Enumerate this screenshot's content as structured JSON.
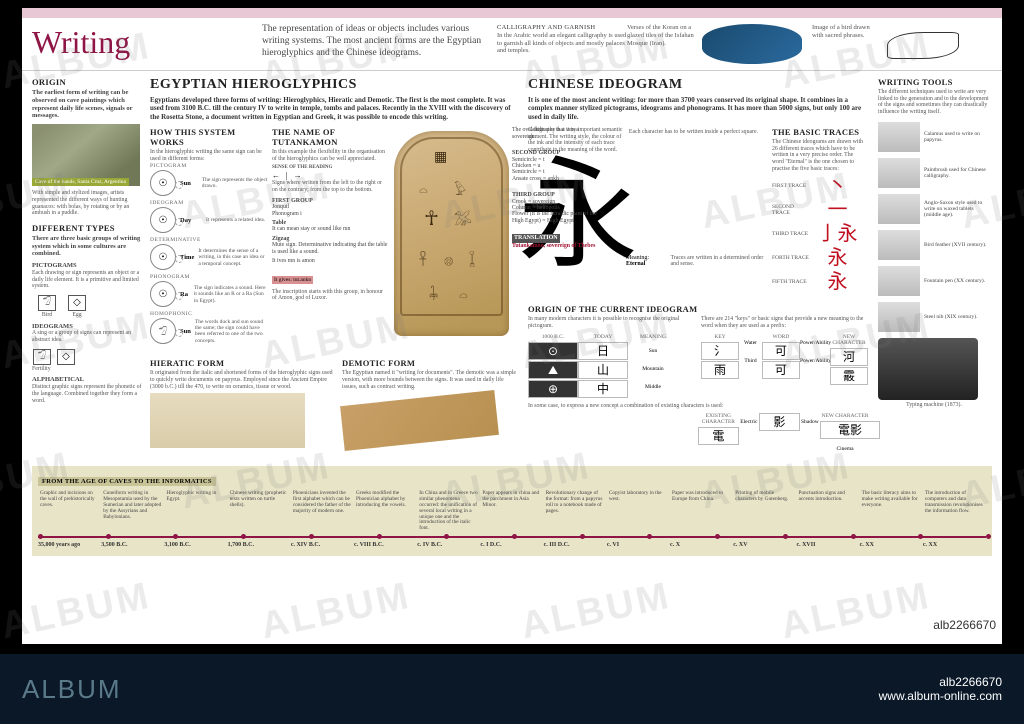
{
  "header": {
    "title": "Writing",
    "intro": "The representation of ideas or objects includes various writing systems. The most ancient forms are the Egyptian hieroglyphics and the Chinese ideograms.",
    "calligraphy_caption": "CALLIGRAPHY AND GARNISH",
    "calligraphy_text": "In the Arabic world an elegant calligraphy is used to garnish all kinds of objects and mostly palaces and temples.",
    "koran_caption": "Verses of the Koran on a glazed tiles of the Isfahan Mosque (Iran).",
    "bird_caption": "Image of a bird drawn with sacred phrases."
  },
  "sidebar": {
    "origin_title": "ORIGIN",
    "origin_text": "The earliest form of writing can be observed on cave paintings which represent daily life scenes, signals or messages.",
    "cave_label": "Cave of the hands, Santa Cruz, Argentina",
    "cave_after": "With simple and stylized images, artists represented the different ways of hunting guanacos: with bolas, by rotating or by an ambush in a puddle.",
    "types_title": "DIFFERENT TYPES",
    "types_text": "There are three basic groups of writing system which in some cultures are combined.",
    "picto_title": "PICTOGRAMS",
    "picto_text": "Each drawing or sign represents an object or a daily life element. It is a primitive and limited system.",
    "picto_ex1": "Bird",
    "picto_ex2": "Egg",
    "ideo_title": "IDEOGRAMS",
    "ideo_text": "A sing or a group of signs can represent an abstract idea.",
    "ideo_ex": "Fertility",
    "alpha_title": "ALPHABETICAL",
    "alpha_text": "Distinct graphic signs represent the phonetic of the language. Combined together they form a word."
  },
  "egypt": {
    "title": "EGYPTIAN HIEROGLYPHICS",
    "intro": "Egyptians developed three forms of writing: Hieroglyphics, Hieratic and Demotic. The first is the most complete. It was used from 3100 B.C. till the century IV to write in temple, tombs and palaces. Recently in the XVIII with the discovery of the Rosetta Stone, a document written in Egyptian and Greek, it was possible to encode this writing.",
    "how_title": "HOW THIS SYSTEM WORKS",
    "how_text": "In the hieroglyphic writing the same sign can be used in different forms:",
    "cats": [
      {
        "cat": "PICTOGRAM",
        "glyph": "☉",
        "label": "Sun",
        "text": "The sign represents the object drawn."
      },
      {
        "cat": "IDEOGRAM",
        "glyph": "☉",
        "label": "Day",
        "text": "It represents a related idea."
      },
      {
        "cat": "DETERMINATIVE",
        "glyph": "☉",
        "label": "Time",
        "text": "It determines the sense of a writing, in this case an idea or a temporal concept."
      },
      {
        "cat": "PHONOGRAM",
        "glyph": "☉",
        "label": "Ra",
        "text": "The sign indicates a sound. Here it sounds like an R or a Ra (Sun in Egypt)."
      },
      {
        "cat": "HOMOPHONIC",
        "glyph": "𓅿",
        "label": "Sun",
        "text": "The words duck and sun sound the same; the sign could have been referred to one of the two concepts."
      }
    ],
    "name_title": "THE NAME OF TUTANKAMON",
    "name_text": "In this example the flexibility in the organisation of the hieroglyphics can be well appreciated.",
    "sense_label": "SENSE OF THE READING",
    "sense_text": "Signs where written from the left to the right or on the contrary; from the top to the bottom.",
    "cart_items": [
      {
        "h": "FIRST GROUP",
        "a": "Jonquil",
        "b": "Phonogram i"
      },
      {
        "h": "Table",
        "a": "It can mean stay or sound like mn"
      },
      {
        "h": "Zigzag",
        "a": "Mute sign. Determinative indicating that the table is used like a sound."
      },
      {
        "h": "",
        "a": "It ives mn is amon"
      }
    ],
    "give_box": "It gives: tut.ankn",
    "inscription": "The inscription starts with this group, in honour of Amon, god of Luxor.",
    "right_items": [
      {
        "h": "",
        "a": "The oval indicates that it is a sovereign."
      },
      {
        "h": "SECOND GROUP",
        "a": "Semicircle = t\nChicken = u\nSemicircle = t\nAnsate cross = ankh"
      },
      {
        "h": "THIRD GROUP",
        "a": "Crook = sovereign\nColumn = heliopolis\nFlower (it is the heraldic plant of the High Egypt) = High Egypt"
      },
      {
        "h": "TRANSLATION",
        "a": "Tutankamón, sovereign of Thebes"
      }
    ],
    "hieratic_title": "HIERATIC FORM",
    "hieratic_text": "It originated from the italic and shortened forms of the hieroglyphic signs used to quickly write documents on papyrus. Employed since the Ancient Empire (3000 b.C.) till the 470, to write on ceramics, tissue or wood.",
    "demotic_title": "DEMOTIC FORM",
    "demotic_text": "The Egyptian named it \"writing for documents\". The demotic was a simple version, with more bounds between the signs. It was used in daily life issues, such as contract writing."
  },
  "china": {
    "title": "CHINESE IDEOGRAM",
    "intro": "It is one of the most ancient writing: for more than 3700 years conserved its original shape. It combines in a complex manner stylized pictograms, ideograms and phonograms. It has more than 5000 signs, but only 100 are used in daily life.",
    "callig_text": "Calligraphy is a very important semantic element. The writing style, the colour of the ink and the intensity of each trace contribute to the meaning of the word.",
    "char_right": "Each character has to be written inside a perfect square.",
    "main_char": "永",
    "meaning_label": "Meaning:",
    "meaning_value": "Eternal",
    "traces_note": "Traces are written in a determined order and sense.",
    "traces_title": "THE BASIC TRACES",
    "traces_text": "The Chinese ideograms are drawn with 26 different traces which have to be written in a very precise order. The word \"Eternal\" is the one chosen to practise the five basic traces:",
    "traces": [
      {
        "label": "FIRST TRACE",
        "ch": "丶"
      },
      {
        "label": "SECOND TRACE",
        "ch": "一"
      },
      {
        "label": "THIRD TRACE",
        "ch": "亅永"
      },
      {
        "label": "FORTH TRACE",
        "ch": "永"
      },
      {
        "label": "FIFTH TRACE",
        "ch": "永"
      }
    ],
    "origin_title": "ORIGIN OF THE CURRENT IDEOGRAM",
    "origin_text": "In many modern characters it is possible to recognise the original pictogram.",
    "grid1_headers": [
      "1000 B.C.",
      "TODAY",
      "MEANING"
    ],
    "grid1": [
      {
        "old": "⊙",
        "new": "日",
        "mean": "Sun"
      },
      {
        "old": "⛰",
        "new": "山",
        "mean": "Mountain"
      },
      {
        "old": "⊕",
        "new": "中",
        "mean": "Middle"
      }
    ],
    "keys_text": "There are 214 \"keys\" or basic signs that provide a new meaning to the word when they are used as a prefix:",
    "grid2_headers": [
      "KEY",
      "WORD",
      "NEW CHARACTER"
    ],
    "grid2": [
      {
        "k": "氵",
        "kl": "Water",
        "w": "可",
        "wl": "Power/Ability",
        "n": "河",
        "nl": "River"
      },
      {
        "k": "雨",
        "kl": "Third",
        "w": "可",
        "wl": "Power/Ability",
        "n": "霰",
        "nl": "To critic"
      }
    ],
    "combo_text": "In some case, to express a new concept a combination of existing characters is used:",
    "grid3_headers": [
      "EXISTING CHARACTER",
      "",
      "NEW CHARACTER"
    ],
    "grid3": [
      {
        "a": "電",
        "al": "Electric",
        "b": "影",
        "bl": "Shadow",
        "n": "電影",
        "nl": "Cinema"
      }
    ]
  },
  "tools": {
    "title": "WRITING TOOLS",
    "intro": "The different techniques used to write are very linked to the generation and to the development of the signs and sometimes they can drastically influence the writing itself.",
    "items": [
      "Calamus used to write on papyrus.",
      "Paintbrush used for Chinese calligraphy.",
      "Anglo-Saxon style used to write on waxed tablets (middle age).",
      "Bird feather (XVII century).",
      "Fountain pen (XX century).",
      "Steel nib (XIX century)."
    ],
    "typewriter": "Typing machine (1873)."
  },
  "timeline": {
    "title": "FROM THE AGE OF CAVES TO THE INFORMATICS",
    "items": [
      "Graphic and incisions on the wall of prehistorically caves.",
      "Cuneiform writing in Mesopotamia used by the Sumerian and later adopted by the Assyrians and Babylonians.",
      "Hieroglyphic writing in Egypt.",
      "Chinese writing (prophetic texts written on turtle shells).",
      "Phoenicians invented the first alphabet which can be considered the father of the majority of modern one.",
      "Greeks modified the Phoenician alphabet by introducing the vowels.",
      "In China and in Greece two similar phenomena occurred: the unification of several local writing in a unique one and the introduction of the italic font.",
      "Paper appears in china and the parchment in Asia Minor.",
      "Revolutionary change of the format: from a papyrus roll to a notebook made of pages.",
      "Copyist laboratory in the west.",
      "Paper was introduced to Europe from China.",
      "Printing of mobile characters by Gutenberg.",
      "Punctuation signs and accents introduction.",
      "The basic literacy aims to make writing available for everyone.",
      "The introduction of computers and data transmission revolutionises the information flow."
    ],
    "dates": [
      "35,000 years ago",
      "3,500 B.C.",
      "3,100 B.C.",
      "1,700 B.C.",
      "c. XIV B.C.",
      "c. VIII B.C.",
      "c. IV B.C.",
      "c. I D.C.",
      "c. III D.C.",
      "c. VI",
      "c. X",
      "c. XV",
      "c. XVII",
      "c. XX",
      "c. XX"
    ]
  },
  "footer": {
    "logo": "ALBUM",
    "id": "alb2266670",
    "url": "www.album-online.com"
  }
}
